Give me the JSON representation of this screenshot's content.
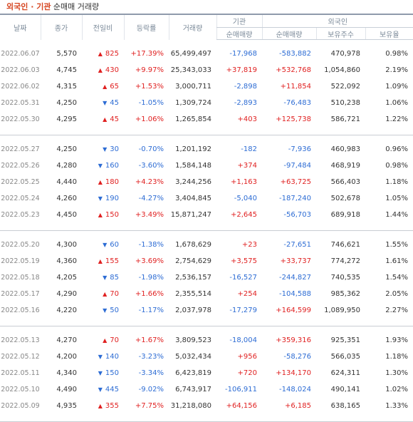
{
  "title": {
    "part1": "외국인 · 기관",
    "part2": " 순매매 거래량"
  },
  "headers": {
    "date": "날짜",
    "close": "종가",
    "prev_change": "전일비",
    "rate": "등락률",
    "volume": "거래량",
    "inst": "기관",
    "inst_net": "순매매량",
    "foreign": "외국인",
    "foreign_net": "순매매량",
    "foreign_hold": "보유주수",
    "foreign_ratio": "보유율"
  },
  "colors": {
    "up": "#e02121",
    "down": "#2d6cd4",
    "title_accent": "#d6441f"
  },
  "groups": [
    [
      {
        "date": "2022.06.07",
        "close": "5,570",
        "dir": "up",
        "change": "825",
        "rate": "+17.39%",
        "volume": "65,499,497",
        "inst": "-17,968",
        "foreign": "-583,882",
        "hold": "470,978",
        "ratio": "0.98%"
      },
      {
        "date": "2022.06.03",
        "close": "4,745",
        "dir": "up",
        "change": "430",
        "rate": "+9.97%",
        "volume": "25,343,033",
        "inst": "+37,819",
        "foreign": "+532,768",
        "hold": "1,054,860",
        "ratio": "2.19%"
      },
      {
        "date": "2022.06.02",
        "close": "4,315",
        "dir": "up",
        "change": "65",
        "rate": "+1.53%",
        "volume": "3,000,711",
        "inst": "-2,898",
        "foreign": "+11,854",
        "hold": "522,092",
        "ratio": "1.09%"
      },
      {
        "date": "2022.05.31",
        "close": "4,250",
        "dir": "down",
        "change": "45",
        "rate": "-1.05%",
        "volume": "1,309,724",
        "inst": "-2,893",
        "foreign": "-76,483",
        "hold": "510,238",
        "ratio": "1.06%"
      },
      {
        "date": "2022.05.30",
        "close": "4,295",
        "dir": "up",
        "change": "45",
        "rate": "+1.06%",
        "volume": "1,265,854",
        "inst": "+403",
        "foreign": "+125,738",
        "hold": "586,721",
        "ratio": "1.22%"
      }
    ],
    [
      {
        "date": "2022.05.27",
        "close": "4,250",
        "dir": "down",
        "change": "30",
        "rate": "-0.70%",
        "volume": "1,201,192",
        "inst": "-182",
        "foreign": "-7,936",
        "hold": "460,983",
        "ratio": "0.96%"
      },
      {
        "date": "2022.05.26",
        "close": "4,280",
        "dir": "down",
        "change": "160",
        "rate": "-3.60%",
        "volume": "1,584,148",
        "inst": "+374",
        "foreign": "-97,484",
        "hold": "468,919",
        "ratio": "0.98%"
      },
      {
        "date": "2022.05.25",
        "close": "4,440",
        "dir": "up",
        "change": "180",
        "rate": "+4.23%",
        "volume": "3,244,256",
        "inst": "+1,163",
        "foreign": "+63,725",
        "hold": "566,403",
        "ratio": "1.18%"
      },
      {
        "date": "2022.05.24",
        "close": "4,260",
        "dir": "down",
        "change": "190",
        "rate": "-4.27%",
        "volume": "3,404,845",
        "inst": "-5,040",
        "foreign": "-187,240",
        "hold": "502,678",
        "ratio": "1.05%"
      },
      {
        "date": "2022.05.23",
        "close": "4,450",
        "dir": "up",
        "change": "150",
        "rate": "+3.49%",
        "volume": "15,871,247",
        "inst": "+2,645",
        "foreign": "-56,703",
        "hold": "689,918",
        "ratio": "1.44%"
      }
    ],
    [
      {
        "date": "2022.05.20",
        "close": "4,300",
        "dir": "down",
        "change": "60",
        "rate": "-1.38%",
        "volume": "1,678,629",
        "inst": "+23",
        "foreign": "-27,651",
        "hold": "746,621",
        "ratio": "1.55%"
      },
      {
        "date": "2022.05.19",
        "close": "4,360",
        "dir": "up",
        "change": "155",
        "rate": "+3.69%",
        "volume": "2,754,629",
        "inst": "+3,575",
        "foreign": "+33,737",
        "hold": "774,272",
        "ratio": "1.61%"
      },
      {
        "date": "2022.05.18",
        "close": "4,205",
        "dir": "down",
        "change": "85",
        "rate": "-1.98%",
        "volume": "2,536,157",
        "inst": "-16,527",
        "foreign": "-244,827",
        "hold": "740,535",
        "ratio": "1.54%"
      },
      {
        "date": "2022.05.17",
        "close": "4,290",
        "dir": "up",
        "change": "70",
        "rate": "+1.66%",
        "volume": "2,355,514",
        "inst": "+254",
        "foreign": "-104,588",
        "hold": "985,362",
        "ratio": "2.05%"
      },
      {
        "date": "2022.05.16",
        "close": "4,220",
        "dir": "down",
        "change": "50",
        "rate": "-1.17%",
        "volume": "2,037,978",
        "inst": "-17,279",
        "foreign": "+164,599",
        "hold": "1,089,950",
        "ratio": "2.27%"
      }
    ],
    [
      {
        "date": "2022.05.13",
        "close": "4,270",
        "dir": "up",
        "change": "70",
        "rate": "+1.67%",
        "volume": "3,809,523",
        "inst": "-18,004",
        "foreign": "+359,316",
        "hold": "925,351",
        "ratio": "1.93%"
      },
      {
        "date": "2022.05.12",
        "close": "4,200",
        "dir": "down",
        "change": "140",
        "rate": "-3.23%",
        "volume": "5,032,434",
        "inst": "+956",
        "foreign": "-58,276",
        "hold": "566,035",
        "ratio": "1.18%"
      },
      {
        "date": "2022.05.11",
        "close": "4,340",
        "dir": "down",
        "change": "150",
        "rate": "-3.34%",
        "volume": "6,423,819",
        "inst": "+720",
        "foreign": "+134,170",
        "hold": "624,311",
        "ratio": "1.30%"
      },
      {
        "date": "2022.05.10",
        "close": "4,490",
        "dir": "down",
        "change": "445",
        "rate": "-9.02%",
        "volume": "6,743,917",
        "inst": "-106,911",
        "foreign": "-148,024",
        "hold": "490,141",
        "ratio": "1.02%"
      },
      {
        "date": "2022.05.09",
        "close": "4,935",
        "dir": "up",
        "change": "355",
        "rate": "+7.75%",
        "volume": "31,218,080",
        "inst": "+64,156",
        "foreign": "+6,185",
        "hold": "638,165",
        "ratio": "1.33%"
      }
    ]
  ]
}
